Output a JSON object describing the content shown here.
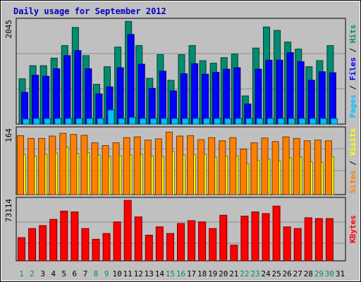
{
  "chart_data": {
    "type": "bar",
    "title": "Daily usage for September 2012",
    "categories": [
      "1",
      "2",
      "3",
      "4",
      "5",
      "6",
      "7",
      "8",
      "9",
      "10",
      "11",
      "12",
      "13",
      "14",
      "15",
      "16",
      "17",
      "18",
      "19",
      "20",
      "21",
      "22",
      "23",
      "24",
      "25",
      "26",
      "27",
      "28",
      "29",
      "30",
      "31"
    ],
    "weekend_days": [
      "1",
      "2",
      "8",
      "9",
      "15",
      "16",
      "22",
      "23",
      "29",
      "30"
    ],
    "panels": [
      {
        "ylabel_parts": [
          {
            "text": "Pages",
            "color": "#00c0ff"
          },
          {
            "text": " / ",
            "color": "#000000"
          },
          {
            "text": "Files",
            "color": "#0000ff"
          },
          {
            "text": " / ",
            "color": "#000000"
          },
          {
            "text": "Hits",
            "color": "#008c70"
          }
        ],
        "ymax_label": "2045",
        "ylim": [
          0,
          2045
        ],
        "series": [
          {
            "name": "Hits",
            "color": "#008c70",
            "values": [
              900,
              1160,
              1160,
              1310,
              1560,
              1920,
              1360,
              790,
              1140,
              1530,
              2040,
              1560,
              910,
              1380,
              870,
              1380,
              1560,
              1260,
              1210,
              1320,
              1390,
              560,
              1510,
              1930,
              1860,
              1630,
              1490,
              1140,
              1260,
              1560,
              null
            ]
          },
          {
            "name": "Files",
            "color": "#0000ff",
            "values": [
              630,
              970,
              950,
              1100,
              1360,
              1460,
              1100,
              600,
              740,
              1120,
              1780,
              1190,
              710,
              1050,
              660,
              1000,
              1200,
              990,
              1030,
              1090,
              1120,
              400,
              1090,
              1270,
              1270,
              1420,
              1240,
              870,
              1040,
              1020,
              null
            ]
          },
          {
            "name": "Pages",
            "color": "#00c0ff",
            "values": [
              100,
              110,
              110,
              110,
              110,
              110,
              110,
              110,
              280,
              110,
              130,
              110,
              110,
              110,
              110,
              110,
              110,
              110,
              110,
              110,
              110,
              110,
              110,
              110,
              110,
              110,
              110,
              110,
              110,
              110,
              null
            ]
          }
        ]
      },
      {
        "ylabel_parts": [
          {
            "text": "Sites",
            "color": "#ff8000"
          },
          {
            "text": " / ",
            "color": "#000000"
          },
          {
            "text": "Visits",
            "color": "#ffff00"
          }
        ],
        "ymax_label": "164",
        "ylim": [
          0,
          164
        ],
        "series": [
          {
            "name": "Visits",
            "color": "#ffff00",
            "values": [
              101,
              97,
              102,
              105,
              120,
              104,
              106,
              100,
              97,
              98,
              100,
              102,
              98,
              97,
              110,
              100,
              101,
              102,
              95,
              97,
              98,
              78,
              87,
              90,
              85,
              93,
              95,
              83,
              82,
              96,
              null
            ]
          },
          {
            "name": "Sites",
            "color": "#ff8000",
            "values": [
              149,
              142,
              142,
              148,
              155,
              152,
              150,
              131,
              124,
              131,
              144,
              146,
              138,
              141,
              158,
              148,
              149,
              139,
              144,
              136,
              144,
              115,
              131,
              143,
              134,
              146,
              142,
              136,
              138,
              136,
              null
            ]
          }
        ]
      },
      {
        "ylabel_parts": [
          {
            "text": "KBytes",
            "color": "#ff0000"
          }
        ],
        "ymax_label": "73114",
        "ylim": [
          0,
          73114
        ],
        "series": [
          {
            "name": "KBytes",
            "color": "#ff0000",
            "values": [
              28000,
              39000,
              42500,
              50000,
              60000,
              59000,
              39000,
              26000,
              33000,
              47000,
              73000,
              53000,
              31000,
              41000,
              33000,
              45000,
              48500,
              47000,
              39000,
              55000,
              19000,
              54000,
              59000,
              57000,
              66000,
              41000,
              39000,
              52000,
              51000,
              51000,
              null
            ]
          }
        ]
      }
    ]
  }
}
